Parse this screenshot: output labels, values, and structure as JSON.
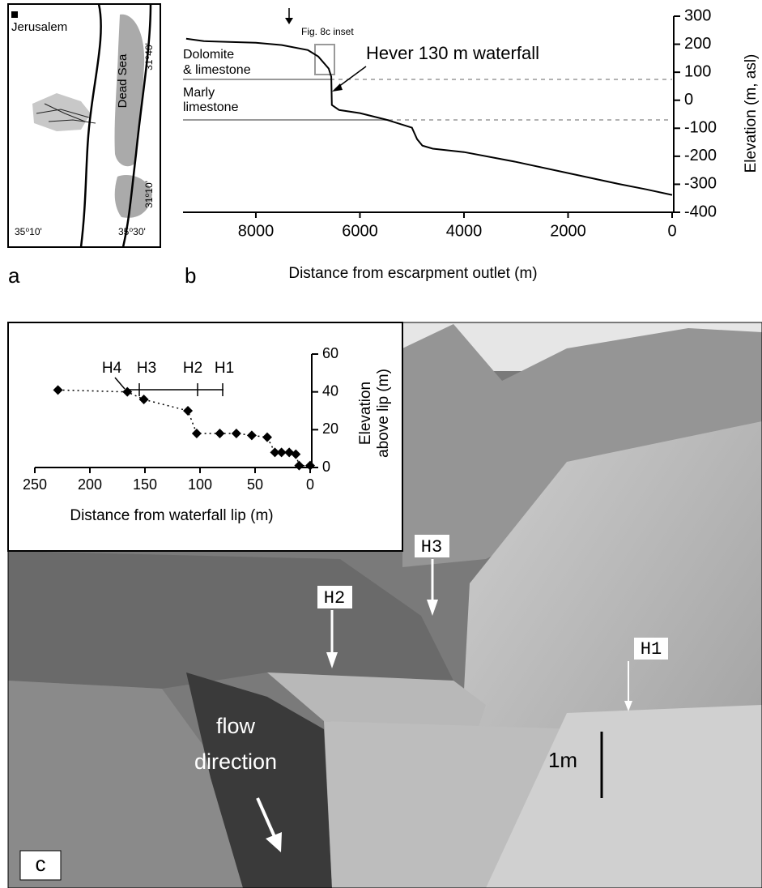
{
  "panels": [
    "a",
    "b",
    "c"
  ],
  "map": {
    "city": "Jerusalem",
    "sea": "Dead Sea",
    "lat_top": "31⁰40'",
    "lat_bottom": "31⁰10'",
    "lon_left": "35⁰10'",
    "lon_right": "35⁰30'"
  },
  "chart_data": [
    {
      "type": "line",
      "x_label": "Distance from escarpment outlet (m)",
      "y_label": "Elevation (m, asl)",
      "annotations": [
        "Dolomite",
        "& limestone",
        "Marly",
        "limestone",
        "Fig. 8c inset",
        "Hever 130 m waterfall"
      ],
      "x": [
        9340,
        9000,
        8000,
        7500,
        7000,
        6800,
        6600,
        6550,
        6540,
        6400,
        6000,
        5500,
        5000,
        4900,
        4800,
        4600,
        4000,
        3000,
        2000,
        1000,
        500,
        0
      ],
      "y": [
        220,
        211,
        205,
        197,
        179,
        156,
        113,
        84,
        -17,
        -35,
        -46,
        -69,
        -98,
        -139,
        -162,
        -173,
        -185,
        -220,
        -260,
        -300,
        -318,
        -338
      ],
      "color": "#000000",
      "xlim": [
        9400,
        0
      ],
      "ylim": [
        -400,
        300
      ],
      "xticks": [
        8000,
        6000,
        4000,
        2000,
        0
      ],
      "yticks": [
        300,
        200,
        100,
        0,
        -100,
        -200,
        -300,
        -400
      ],
      "y_axis_side": "right"
    },
    {
      "type": "line",
      "x_label": "Distance from waterfall lip (m)",
      "y_label": [
        "Elevation",
        "above lip (m)"
      ],
      "annotations": [
        "H4",
        "H3",
        "H2",
        "H1"
      ],
      "x": [
        229,
        166,
        151,
        111,
        103,
        82,
        67,
        53,
        39,
        32,
        26,
        19,
        13,
        10,
        0
      ],
      "y": [
        41,
        40,
        36,
        30,
        18,
        18,
        18,
        17,
        16,
        8,
        8,
        8,
        7,
        1,
        1
      ],
      "color": "#000000",
      "line_style": "dotted",
      "marker": "diamond",
      "xlim": [
        250,
        0
      ],
      "ylim": [
        0,
        60
      ],
      "xticks": [
        250,
        200,
        150,
        100,
        50,
        0
      ],
      "yticks": [
        0,
        20,
        40,
        60
      ],
      "y_axis_side": "right"
    }
  ],
  "photo": {
    "markers": [
      "H3",
      "H2",
      "H1"
    ],
    "flow_label": [
      "flow",
      "direction"
    ],
    "scale_label": "1m"
  }
}
